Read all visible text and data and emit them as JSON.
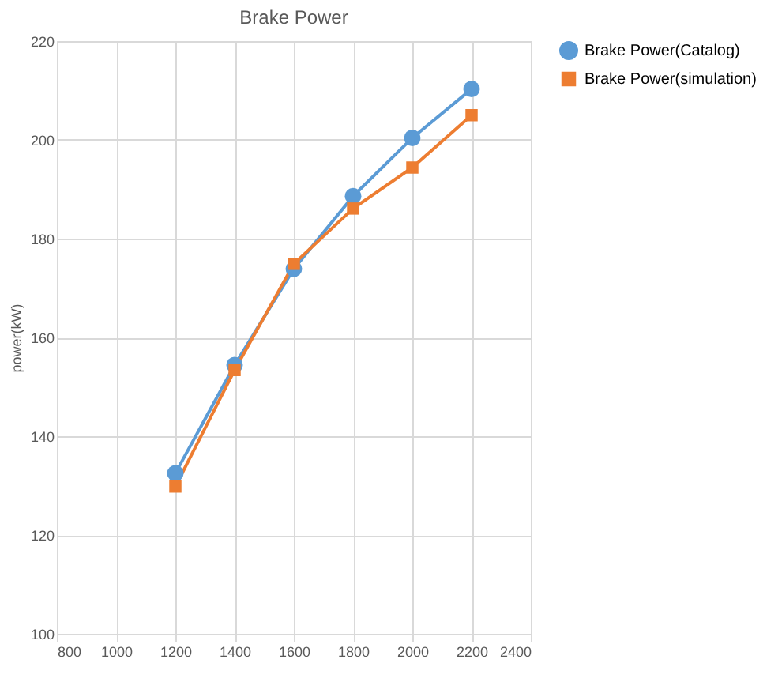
{
  "chart_data": {
    "type": "line",
    "title": "Brake Power",
    "ylabel": "power(kW)",
    "x": [
      1200,
      1400,
      1600,
      1800,
      2000,
      2200
    ],
    "series": [
      {
        "name": "Brake Power(Catalog)",
        "color": "#5b9bd5",
        "marker": "circle",
        "values": [
          132.5,
          154.4,
          173.9,
          188.6,
          200.4,
          210.3
        ]
      },
      {
        "name": "Brake Power(simulation)",
        "color": "#ed7d31",
        "marker": "square",
        "values": [
          129.8,
          153.4,
          174.9,
          186.1,
          194.4,
          205
        ]
      }
    ],
    "xlim": [
      800,
      2400
    ],
    "xticks": [
      800,
      1000,
      1200,
      1400,
      1600,
      1800,
      2000,
      2200,
      2400
    ],
    "ylim": [
      100,
      220
    ],
    "yticks": [
      100,
      120,
      140,
      160,
      180,
      200,
      220
    ],
    "grid": true,
    "legend": "right",
    "line_style": "solid"
  }
}
